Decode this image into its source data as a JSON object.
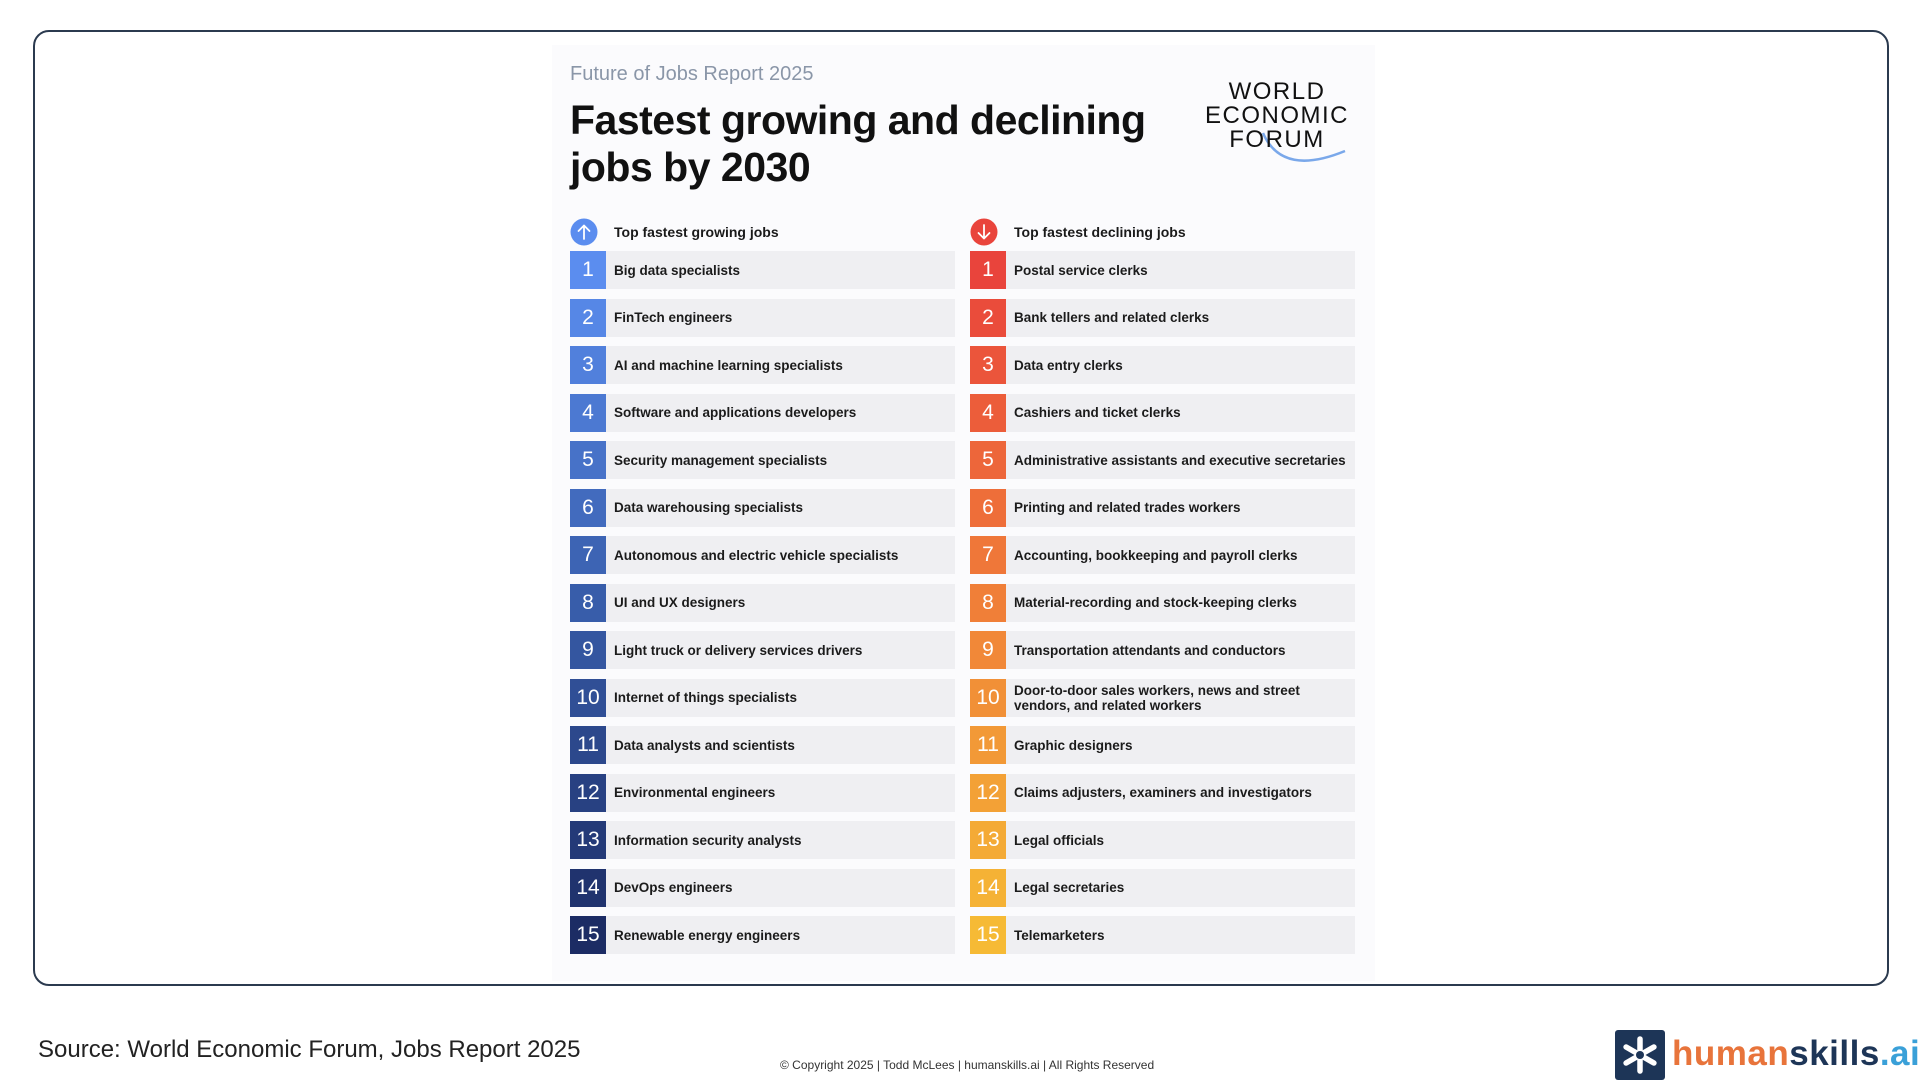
{
  "report": {
    "kicker": "Future of Jobs Report 2025",
    "headline": "Fastest growing and declining jobs by 2030",
    "logo": {
      "line1": "WORLD",
      "line2": "ECONOMIC",
      "line3": "FORUM"
    }
  },
  "growing": {
    "header": "Top fastest growing jobs",
    "icon": "arrow-up-icon",
    "items": [
      {
        "rank": "1",
        "job": "Big data specialists",
        "color": "#5b8def"
      },
      {
        "rank": "2",
        "job": "FinTech engineers",
        "color": "#5687e6"
      },
      {
        "rank": "3",
        "job": "AI and machine learning specialists",
        "color": "#5180dc"
      },
      {
        "rank": "4",
        "job": "Software and applications developers",
        "color": "#4c79d2"
      },
      {
        "rank": "5",
        "job": "Security management specialists",
        "color": "#4772c8"
      },
      {
        "rank": "6",
        "job": "Data warehousing specialists",
        "color": "#426bbe"
      },
      {
        "rank": "7",
        "job": "Autonomous and electric vehicle specialists",
        "color": "#3d64b4"
      },
      {
        "rank": "8",
        "job": "UI and UX designers",
        "color": "#385daa"
      },
      {
        "rank": "9",
        "job": "Light truck or delivery services drivers",
        "color": "#3456a0"
      },
      {
        "rank": "10",
        "job": "Internet of things specialists",
        "color": "#304f96"
      },
      {
        "rank": "11",
        "job": "Data analysts and scientists",
        "color": "#2c488c"
      },
      {
        "rank": "12",
        "job": "Environmental engineers",
        "color": "#284182"
      },
      {
        "rank": "13",
        "job": "Information security analysts",
        "color": "#243a78"
      },
      {
        "rank": "14",
        "job": "DevOps engineers",
        "color": "#20336e"
      },
      {
        "rank": "15",
        "job": "Renewable energy engineers",
        "color": "#1c2c64"
      }
    ]
  },
  "declining": {
    "header": "Top fastest declining jobs",
    "icon": "arrow-down-icon",
    "items": [
      {
        "rank": "1",
        "job": "Postal service clerks",
        "color": "#e9443c"
      },
      {
        "rank": "2",
        "job": "Bank tellers and related clerks",
        "color": "#ea4c3b"
      },
      {
        "rank": "3",
        "job": "Data entry clerks",
        "color": "#eb553b"
      },
      {
        "rank": "4",
        "job": "Cashiers and ticket clerks",
        "color": "#ec5d3a"
      },
      {
        "rank": "5",
        "job": "Administrative assistants and executive secretaries",
        "color": "#ed663a"
      },
      {
        "rank": "6",
        "job": "Printing and related trades workers",
        "color": "#ee6e39"
      },
      {
        "rank": "7",
        "job": "Accounting, bookkeeping and payroll clerks",
        "color": "#ef7739"
      },
      {
        "rank": "8",
        "job": "Material-recording and stock-keeping clerks",
        "color": "#f07f38"
      },
      {
        "rank": "9",
        "job": "Transportation attendants and conductors",
        "color": "#f18838"
      },
      {
        "rank": "10",
        "job": "Door-to-door sales workers, news and street vendors, and related workers",
        "color": "#f19037"
      },
      {
        "rank": "11",
        "job": "Graphic designers",
        "color": "#f29937"
      },
      {
        "rank": "12",
        "job": "Claims adjusters, examiners and investigators",
        "color": "#f3a136"
      },
      {
        "rank": "13",
        "job": "Legal officials",
        "color": "#f4aa36"
      },
      {
        "rank": "14",
        "job": "Legal secretaries",
        "color": "#f5b235"
      },
      {
        "rank": "15",
        "job": "Telemarketers",
        "color": "#f6ba35"
      }
    ]
  },
  "footer": {
    "source": "Source: World Economic Forum, Jobs Report 2025",
    "copyright": "© Copyright 2025 |  Todd McLees  |  humanskills.ai  | All Rights Reserved",
    "brand_part1": "human",
    "brand_part2": "skills",
    "brand_part3": ".ai"
  },
  "colors": {
    "up_icon": "#5b8def",
    "down_icon": "#e9443c",
    "brand_dark": "#1d3557",
    "brand_orange": "#e8743b",
    "brand_blue": "#3aa0d8"
  }
}
